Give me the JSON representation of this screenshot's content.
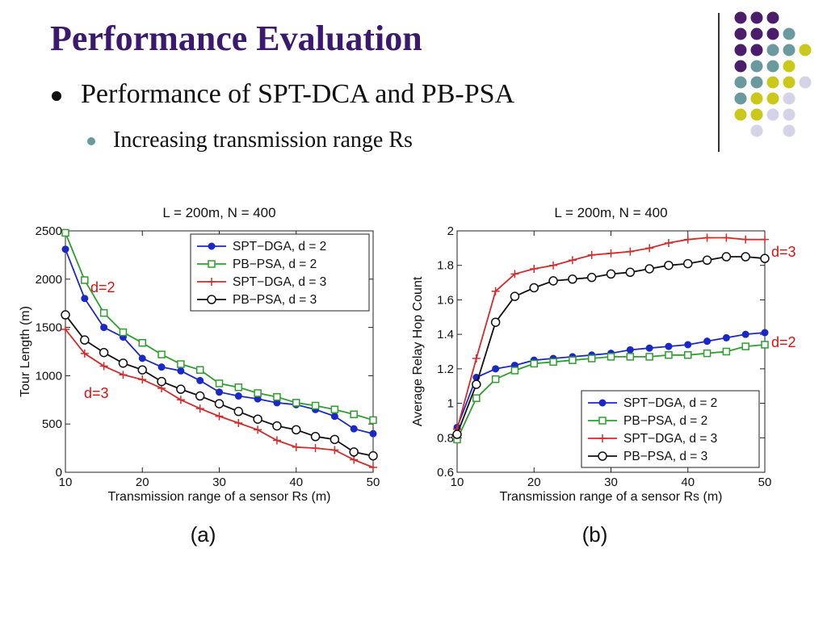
{
  "slide": {
    "title": "Performance Evaluation",
    "bullet1": "Performance of SPT-DCA and PB-PSA",
    "bullet2": "Increasing transmission range Rs"
  },
  "decor_colors": {
    "purple": "#4b1d6b",
    "teal": "#6b9a9e",
    "yellow": "#c9c81b",
    "lavender": "#d4d3e8"
  },
  "chart_data": [
    {
      "type": "line",
      "title": "L = 200m, N = 400",
      "xlabel": "Transmission range of a sensor Rs (m)",
      "ylabel": "Tour Length (m)",
      "caption": "(a)",
      "xlim": [
        10,
        50
      ],
      "ylim": [
        0,
        2500
      ],
      "xticks": [
        10,
        20,
        30,
        40,
        50
      ],
      "yticks": [
        0,
        500,
        1000,
        1500,
        2000,
        2500
      ],
      "legend_position": "top-right",
      "x": [
        10,
        12.5,
        15,
        17.5,
        20,
        22.5,
        25,
        27.5,
        30,
        32.5,
        35,
        37.5,
        40,
        42.5,
        45,
        47.5,
        50
      ],
      "series": [
        {
          "name": "SPT−DGA, d = 2",
          "color": "#1a28c8",
          "marker": "dot",
          "values": [
            2310,
            1800,
            1500,
            1400,
            1180,
            1090,
            1050,
            950,
            830,
            790,
            760,
            720,
            700,
            650,
            580,
            450,
            400
          ]
        },
        {
          "name": "PB−PSA, d = 2",
          "color": "#2e9e2e",
          "marker": "square",
          "values": [
            2480,
            1990,
            1650,
            1450,
            1340,
            1220,
            1120,
            1060,
            920,
            880,
            820,
            780,
            720,
            690,
            650,
            600,
            540
          ]
        },
        {
          "name": "SPT−DGA, d = 3",
          "color": "#d62a2a",
          "marker": "plus",
          "values": [
            1480,
            1230,
            1100,
            1010,
            960,
            870,
            750,
            660,
            580,
            510,
            440,
            330,
            260,
            250,
            230,
            130,
            50
          ]
        },
        {
          "name": "PB−PSA, d = 3",
          "color": "#111111",
          "marker": "circle",
          "values": [
            1630,
            1370,
            1240,
            1130,
            1060,
            940,
            860,
            790,
            710,
            630,
            550,
            480,
            440,
            370,
            340,
            210,
            170
          ]
        }
      ],
      "annotations": [
        {
          "text": "d=2"
        },
        {
          "text": "d=3"
        }
      ]
    },
    {
      "type": "line",
      "title": "L = 200m, N = 400",
      "xlabel": "Transmission range of a sensor Rs (m)",
      "ylabel": "Average Relay Hop Count",
      "caption": "(b)",
      "xlim": [
        10,
        50
      ],
      "ylim": [
        0.6,
        2
      ],
      "xticks": [
        10,
        20,
        30,
        40,
        50
      ],
      "yticks": [
        0.6,
        0.8,
        1,
        1.2,
        1.4,
        1.6,
        1.8,
        2
      ],
      "legend_position": "bottom-right",
      "x": [
        10,
        12.5,
        15,
        17.5,
        20,
        22.5,
        25,
        27.5,
        30,
        32.5,
        35,
        37.5,
        40,
        42.5,
        45,
        47.5,
        50
      ],
      "series": [
        {
          "name": "SPT−DGA, d = 2",
          "color": "#1a28c8",
          "marker": "dot",
          "values": [
            0.86,
            1.15,
            1.2,
            1.22,
            1.25,
            1.26,
            1.27,
            1.28,
            1.29,
            1.31,
            1.32,
            1.33,
            1.34,
            1.36,
            1.38,
            1.4,
            1.41
          ]
        },
        {
          "name": "PB−PSA, d = 2",
          "color": "#2e9e2e",
          "marker": "square",
          "values": [
            0.79,
            1.03,
            1.14,
            1.19,
            1.23,
            1.24,
            1.25,
            1.26,
            1.27,
            1.27,
            1.27,
            1.28,
            1.28,
            1.29,
            1.3,
            1.33,
            1.34
          ]
        },
        {
          "name": "SPT−DGA, d = 3",
          "color": "#d62a2a",
          "marker": "plus",
          "values": [
            0.85,
            1.26,
            1.65,
            1.75,
            1.78,
            1.8,
            1.83,
            1.86,
            1.87,
            1.88,
            1.9,
            1.93,
            1.95,
            1.96,
            1.96,
            1.95,
            1.95
          ]
        },
        {
          "name": "PB−PSA, d = 3",
          "color": "#111111",
          "marker": "circle",
          "values": [
            0.82,
            1.11,
            1.47,
            1.62,
            1.67,
            1.71,
            1.72,
            1.73,
            1.75,
            1.76,
            1.78,
            1.8,
            1.81,
            1.83,
            1.85,
            1.85,
            1.84
          ]
        }
      ],
      "annotations": [
        {
          "text": "d=3"
        },
        {
          "text": "d=2"
        }
      ]
    }
  ]
}
